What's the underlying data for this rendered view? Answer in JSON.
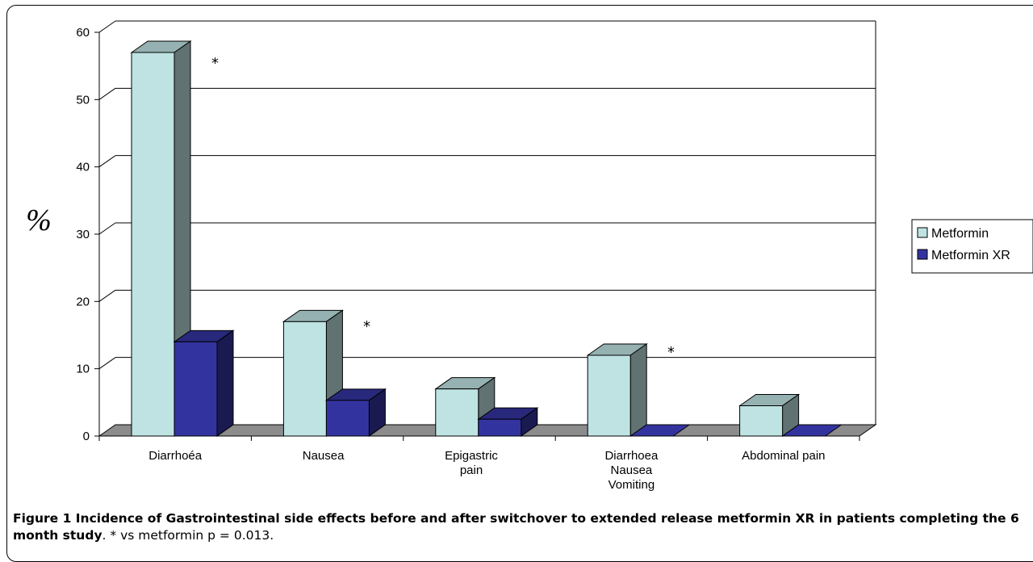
{
  "chart_data": {
    "type": "bar",
    "ylabel": "%",
    "ylim": [
      0,
      60
    ],
    "yticks": [
      "0",
      "10",
      "20",
      "30",
      "40",
      "50",
      "60"
    ],
    "categories": [
      [
        "Diarrhoéa"
      ],
      [
        "Nausea"
      ],
      [
        "Epigastric",
        "pain"
      ],
      [
        "Diarrhoea",
        "Nausea",
        "Vomiting"
      ],
      [
        "Abdominal pain"
      ]
    ],
    "series": [
      {
        "name": "Metformin",
        "values": [
          57,
          17,
          7,
          12,
          4.5
        ],
        "color": "#bfe3e3"
      },
      {
        "name": "Metformin XR",
        "values": [
          14,
          5.3,
          2.5,
          0,
          0
        ],
        "color": "#3333a0"
      }
    ],
    "annotations": [
      "*",
      "*",
      "*"
    ],
    "legend": "right",
    "grid": true
  },
  "caption": {
    "bold": "Figure 1 Incidence of Gastrointestinal side effects before and after switchover to extended release metformin XR in patients completing the 6 month study",
    "rest": ". * vs metformin p = 0.013."
  }
}
